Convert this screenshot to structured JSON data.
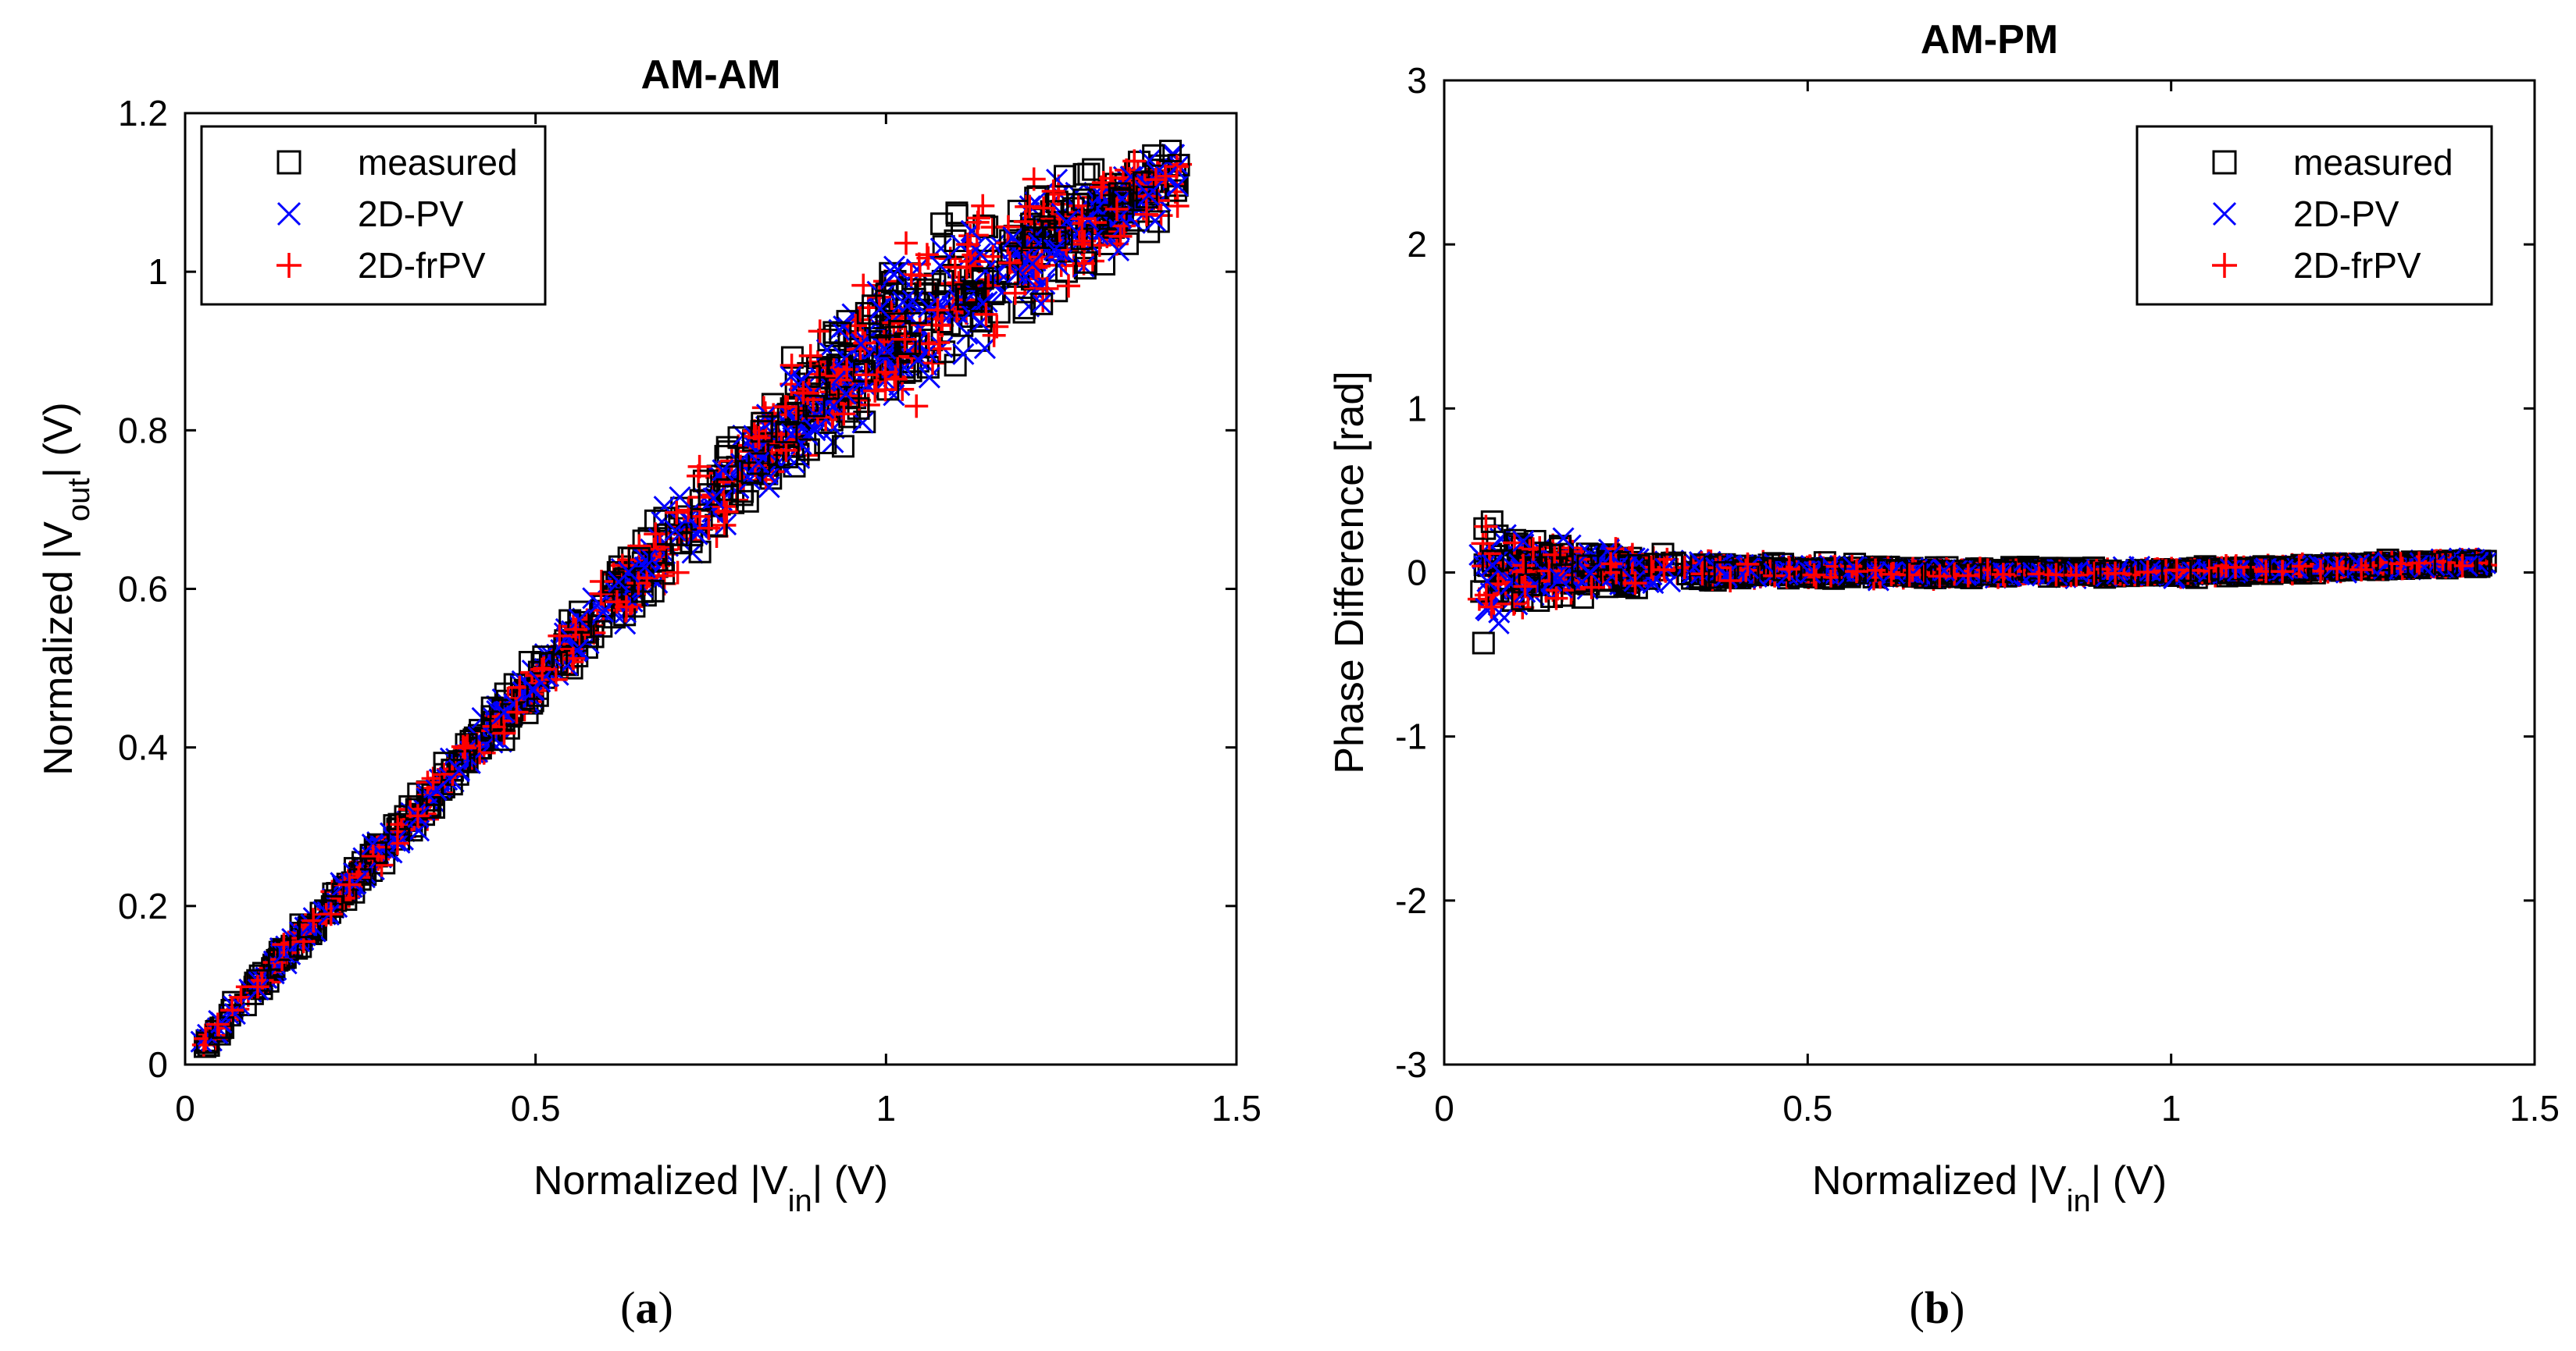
{
  "chart_data": [
    {
      "type": "scatter",
      "title": "AM-AM",
      "xlabel": {
        "main": "Normalized |V",
        "sub": "in",
        "tail": "| (V)"
      },
      "ylabel": {
        "main": "Normalized |V",
        "sub": "out",
        "tail": "| (V)"
      },
      "xlim": [
        0,
        1.5
      ],
      "ylim": [
        0,
        1.2
      ],
      "xticks": [
        0,
        0.5,
        1,
        1.5
      ],
      "xtick_labels": [
        "0",
        "0.5",
        "1",
        "1.5"
      ],
      "yticks": [
        0,
        0.2,
        0.4,
        0.6,
        0.8,
        1,
        1.2
      ],
      "ytick_labels": [
        "0",
        "0.2",
        "0.4",
        "0.6",
        "0.8",
        "1",
        "1.2"
      ],
      "legend_position": "top-left",
      "series": [
        {
          "name": "measured",
          "marker": "square",
          "color": "#000000"
        },
        {
          "name": "2D-PV",
          "marker": "x",
          "color": "#0000ff"
        },
        {
          "name": "2D-frPV",
          "marker": "plus",
          "color": "#ff0000"
        }
      ],
      "cloud": {
        "centerline": [
          [
            0.02,
            0.02
          ],
          [
            0.3,
            0.29
          ],
          [
            0.6,
            0.58
          ],
          [
            0.9,
            0.84
          ],
          [
            1.1,
            0.98
          ],
          [
            1.42,
            1.12
          ]
        ],
        "spread": [
          [
            0.02,
            0.01
          ],
          [
            0.3,
            0.025
          ],
          [
            0.6,
            0.05
          ],
          [
            0.9,
            0.1
          ],
          [
            1.1,
            0.13
          ],
          [
            1.42,
            0.05
          ]
        ]
      },
      "subfigure_label": "(a)"
    },
    {
      "type": "scatter",
      "title": "AM-PM",
      "xlabel": {
        "main": "Normalized |V",
        "sub": "in",
        "tail": "| (V)"
      },
      "ylabel": {
        "main": "Phase Difference [rad]",
        "sub": "",
        "tail": ""
      },
      "xlim": [
        0,
        1.5
      ],
      "ylim": [
        -3,
        3
      ],
      "xticks": [
        0,
        0.5,
        1,
        1.5
      ],
      "xtick_labels": [
        "0",
        "0.5",
        "1",
        "1.5"
      ],
      "yticks": [
        -3,
        -2,
        -1,
        0,
        1,
        2,
        3
      ],
      "ytick_labels": [
        "-3",
        "-2",
        "-1",
        "0",
        "1",
        "2",
        "3"
      ],
      "legend_position": "top-right",
      "series": [
        {
          "name": "measured",
          "marker": "square",
          "color": "#000000"
        },
        {
          "name": "2D-PV",
          "marker": "x",
          "color": "#0000ff"
        },
        {
          "name": "2D-frPV",
          "marker": "plus",
          "color": "#ff0000"
        }
      ],
      "cloud": {
        "centerline": [
          [
            0.04,
            0.0
          ],
          [
            0.3,
            0.02
          ],
          [
            0.6,
            0.0
          ],
          [
            1.0,
            0.0
          ],
          [
            1.43,
            0.06
          ]
        ],
        "spread": [
          [
            0.04,
            0.5
          ],
          [
            0.1,
            0.35
          ],
          [
            0.2,
            0.18
          ],
          [
            0.4,
            0.07
          ],
          [
            0.8,
            0.04
          ],
          [
            1.43,
            0.04
          ]
        ]
      },
      "subfigure_label": "(b)"
    }
  ]
}
